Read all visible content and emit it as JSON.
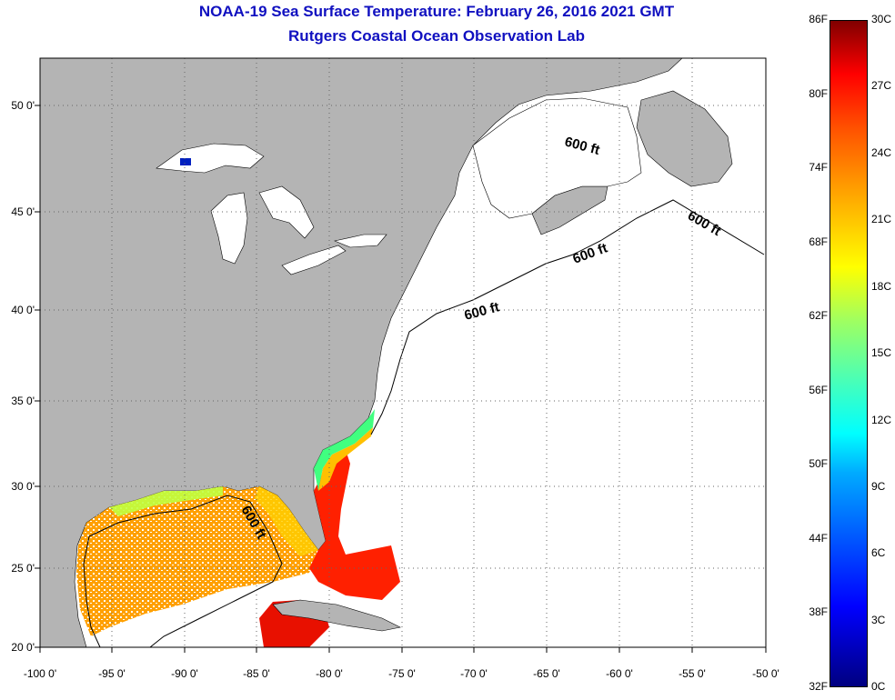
{
  "header": {
    "title_line1": "NOAA-19 Sea Surface Temperature:  February 26, 2016 2021 GMT",
    "title_line2": "Rutgers Coastal Ocean Observation Lab"
  },
  "axes": {
    "lat_labels": [
      "50 0'",
      "45 0'",
      "40 0'",
      "35 0'",
      "30 0'",
      "25 0'",
      "20 0'"
    ],
    "lon_labels": [
      "-100 0'",
      "-95 0'",
      "-90 0'",
      "-85 0'",
      "-80 0'",
      "-75 0'",
      "-70 0'",
      "-65 0'",
      "-60 0'",
      "-55 0'",
      "-50 0'"
    ]
  },
  "contours": {
    "label": "600 ft"
  },
  "colorbar": {
    "fahrenheit_labels": [
      "86F",
      "80F",
      "74F",
      "68F",
      "62F",
      "56F",
      "50F",
      "44F",
      "38F",
      "32F"
    ],
    "celsius_labels": [
      "30C",
      "27C",
      "24C",
      "21C",
      "18C",
      "15C",
      "12C",
      "9C",
      "6C",
      "3C",
      "0C"
    ]
  },
  "colors": {
    "title": "#1010c0",
    "land": "#b4b4b4",
    "no_data": "#ffffff",
    "warm": "#ff2000",
    "cool": "#0000ff"
  }
}
